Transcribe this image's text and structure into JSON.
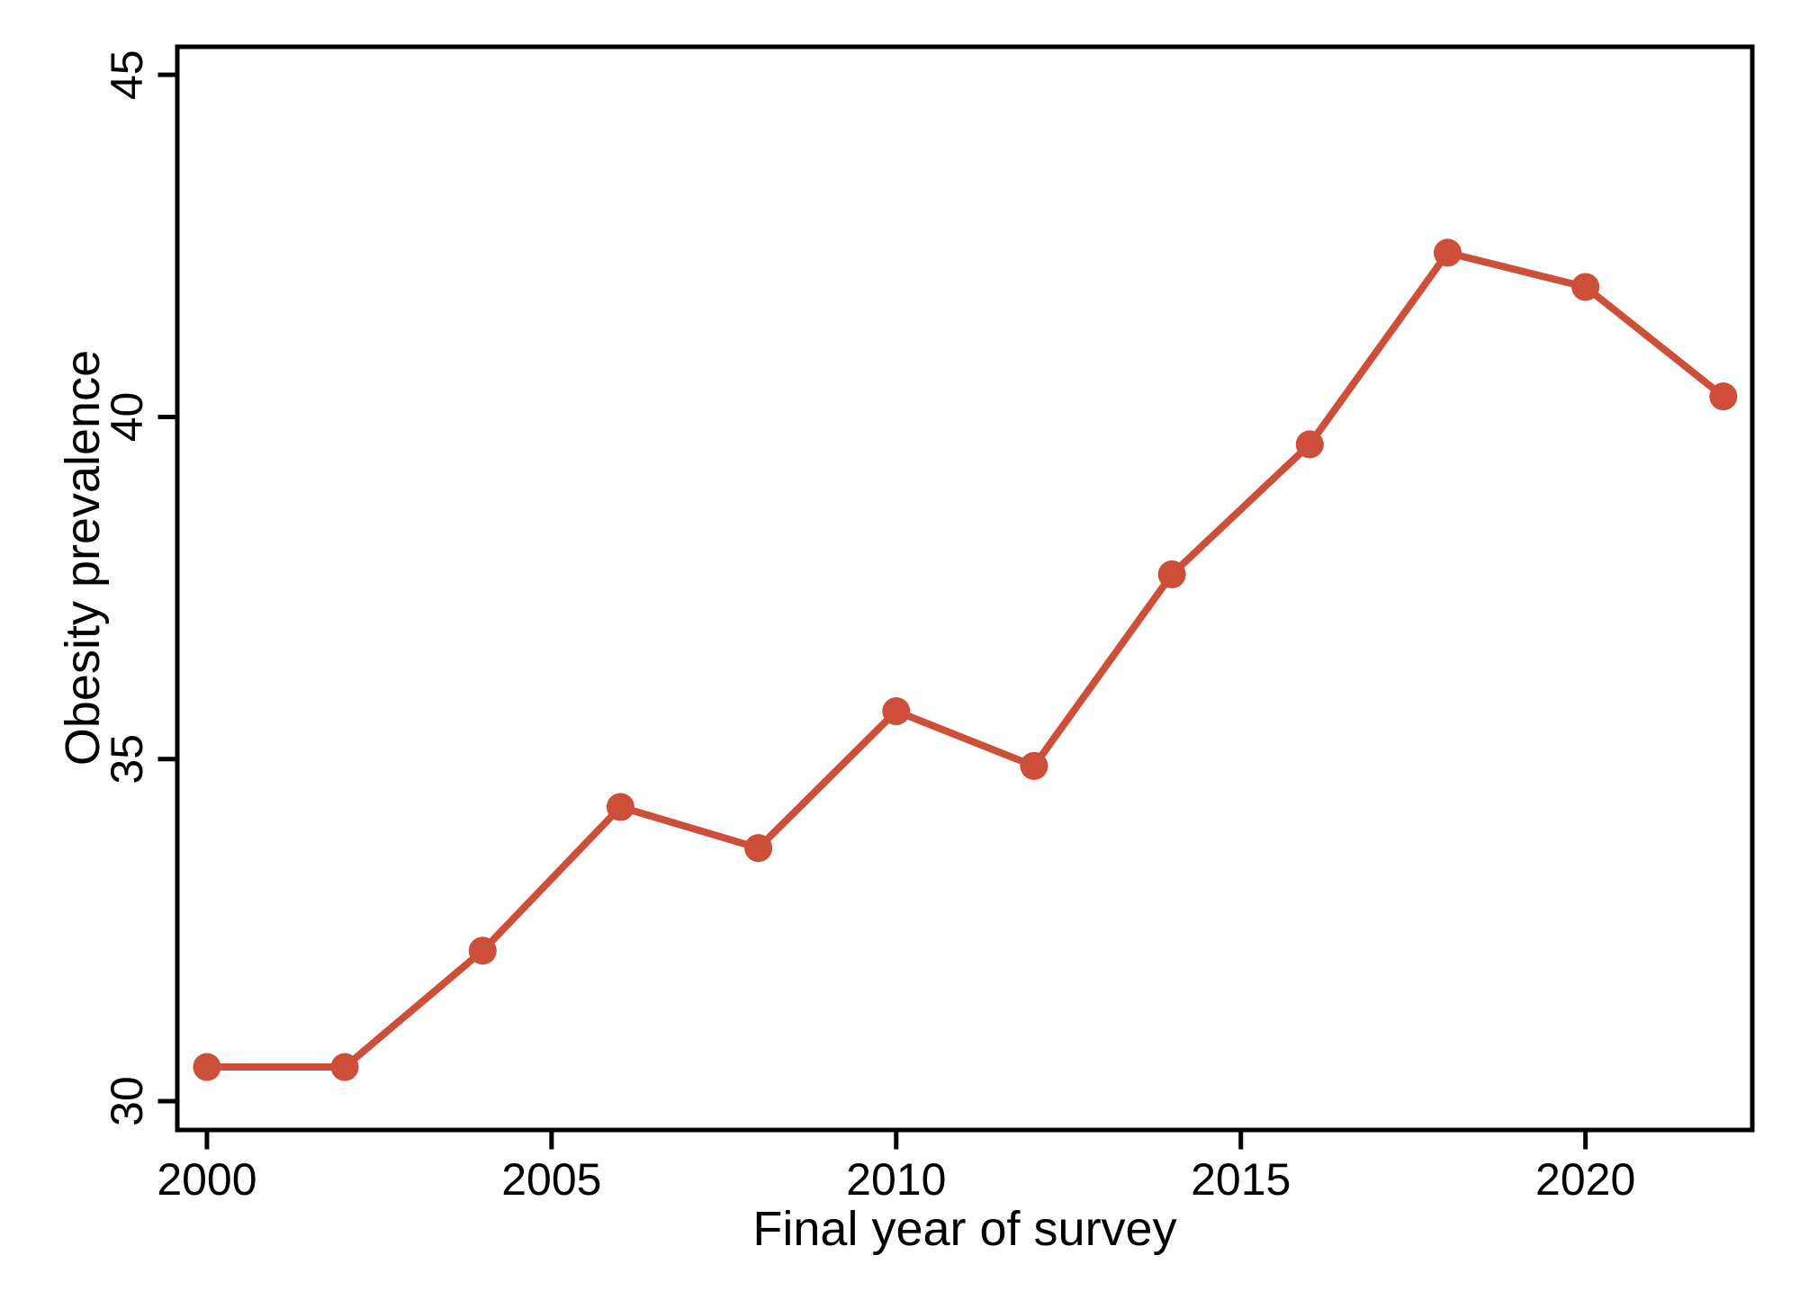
{
  "figure": {
    "background_color": "#ffffff",
    "frame_color": "#000000",
    "text_color": "#000000"
  },
  "chart_data": {
    "type": "line",
    "title": "",
    "xlabel": "Final year of survey",
    "ylabel": "Obesity prevalence",
    "x": [
      2000,
      2002,
      2004,
      2006,
      2008,
      2010,
      2012,
      2014,
      2016,
      2018,
      2020,
      2022
    ],
    "series": [
      {
        "name": "Obesity prevalence",
        "values": [
          30.5,
          30.5,
          32.2,
          34.3,
          33.7,
          35.7,
          34.9,
          37.7,
          39.6,
          42.4,
          41.9,
          40.3
        ]
      }
    ],
    "xticks": [
      2000,
      2005,
      2010,
      2015,
      2020
    ],
    "xtick_labels": [
      "2000",
      "2005",
      "2010",
      "2015",
      "2020"
    ],
    "yticks": [
      30,
      35,
      40,
      45
    ],
    "ytick_labels": [
      "30",
      "35",
      "40",
      "45"
    ],
    "xlim": [
      1999.57,
      2022.42
    ],
    "ylim": [
      29.58,
      45.41
    ],
    "grid": false,
    "legend": null,
    "marker": "circle",
    "line_color": "#cd4f39",
    "marker_color": "#cd4f39",
    "frame": true
  }
}
